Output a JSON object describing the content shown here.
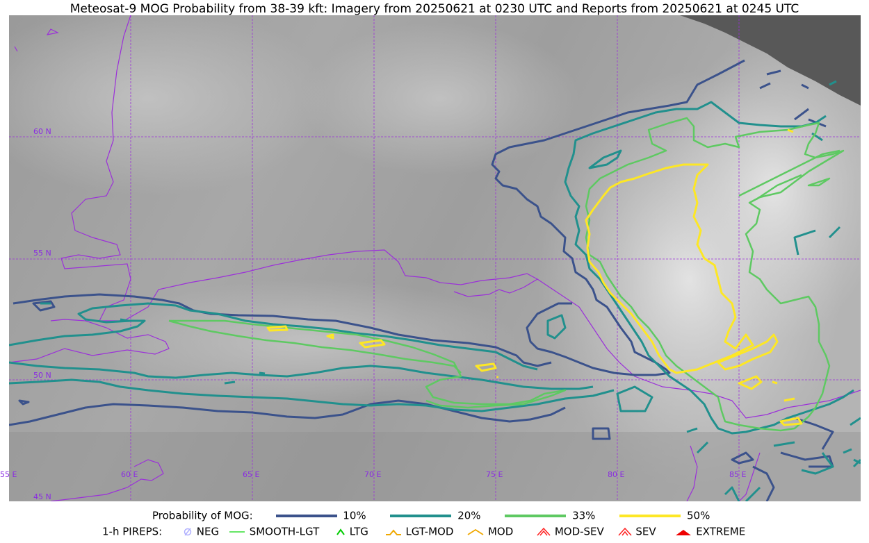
{
  "title": "Meteosat-9 MOG Probability from 38-39 kft: Imagery from 20250621 at 0230 UTC and Reports from 20250621 at 0245 UTC",
  "grid": {
    "lat_labels": [
      "60 N",
      "55 N",
      "50 N",
      "45 N"
    ],
    "lon_labels": [
      "55 E",
      "60 E",
      "65 E",
      "70 E",
      "75 E",
      "80 E",
      "85 E"
    ],
    "line_color": "#9b30d9"
  },
  "legend": {
    "prob_title": "Probability of MOG:",
    "prob_levels": [
      {
        "label": "10%",
        "color": "#3b528b"
      },
      {
        "label": "20%",
        "color": "#21908d"
      },
      {
        "label": "33%",
        "color": "#5ec962"
      },
      {
        "label": "50%",
        "color": "#fde725"
      }
    ],
    "pirep_title": "1-h PIREPS:",
    "pirep_items": [
      {
        "label": "NEG",
        "icon": "neg-icon",
        "color": "#b0b0ff"
      },
      {
        "label": "SMOOTH-LGT",
        "icon": "smooth-lgt-icon",
        "color": "#33dd33"
      },
      {
        "label": "LTG",
        "icon": "ltg-icon",
        "color": "#00cc00"
      },
      {
        "label": "LGT-MOD",
        "icon": "lgt-mod-icon",
        "color": "#f0a800"
      },
      {
        "label": "MOD",
        "icon": "mod-icon",
        "color": "#f0a800"
      },
      {
        "label": "MOD-SEV",
        "icon": "mod-sev-icon",
        "color": "#ff2020"
      },
      {
        "label": "SEV",
        "icon": "sev-icon",
        "color": "#ff2020"
      },
      {
        "label": "EXTREME",
        "icon": "extreme-icon",
        "color": "#ee0000"
      }
    ]
  }
}
